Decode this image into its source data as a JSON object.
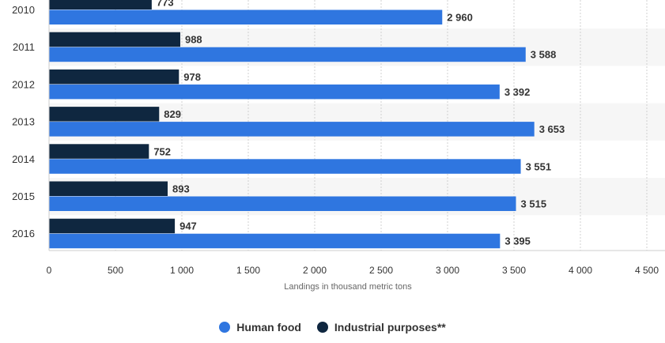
{
  "chart_data": {
    "type": "bar",
    "orientation": "horizontal",
    "categories": [
      "2010",
      "2011",
      "2012",
      "2013",
      "2014",
      "2015",
      "2016"
    ],
    "series": [
      {
        "name": "Industrial purposes**",
        "color": "#0f2740",
        "values": [
          773,
          988,
          978,
          829,
          752,
          893,
          947
        ],
        "labels": [
          "773",
          "988",
          "978",
          "829",
          "752",
          "893",
          "947"
        ]
      },
      {
        "name": "Human food",
        "color": "#2f76e0",
        "values": [
          2960,
          3588,
          3392,
          3653,
          3551,
          3515,
          3395
        ],
        "labels": [
          "2 960",
          "3 588",
          "3 392",
          "3 653",
          "3 551",
          "3 515",
          "3 395"
        ]
      }
    ],
    "xlabel": "Landings in thousand metric tons",
    "xlim": [
      0,
      4500
    ],
    "xticks": [
      0,
      500,
      1000,
      1500,
      2000,
      2500,
      3000,
      3500,
      4000,
      4500
    ],
    "xtick_labels": [
      "0",
      "500",
      "1 000",
      "1 500",
      "2 000",
      "2 500",
      "3 000",
      "3 500",
      "4 000",
      "4 500"
    ],
    "grid": true,
    "legend_position": "bottom-center"
  },
  "legend": {
    "items": [
      {
        "label": "Human food",
        "color": "#2f76e0"
      },
      {
        "label": "Industrial purposes**",
        "color": "#0f2740"
      }
    ]
  }
}
